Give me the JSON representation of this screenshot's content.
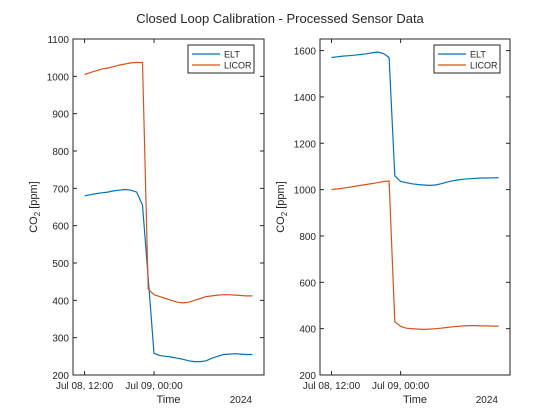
{
  "title": "Closed Loop Calibration - Processed Sensor Data",
  "colors": {
    "elt": "#0072BD",
    "licor": "#D95319"
  },
  "chart_data": [
    {
      "type": "line",
      "xlabel": "Time",
      "x_secondary_label": "2024",
      "ylabel_main": "CO",
      "ylabel_sub": "2",
      "ylabel_unit": " [ppm]",
      "x_ticks": [
        "Jul 08, 12:00",
        "Jul 09, 00:00"
      ],
      "y_ticks": [
        200,
        300,
        400,
        500,
        600,
        700,
        800,
        900,
        1000,
        1100
      ],
      "ylim": [
        200,
        1100
      ],
      "legend_position": "top-right",
      "series": [
        {
          "name": "ELT",
          "color": "#0072BD",
          "x_hours": [
            0,
            1,
            2,
            3,
            4,
            5,
            6,
            7,
            8,
            9,
            10,
            11,
            12,
            13,
            14,
            15,
            16,
            17,
            18,
            19,
            20,
            21,
            22,
            23,
            24,
            25,
            26,
            27,
            28,
            29
          ],
          "values": [
            680,
            683,
            686,
            688,
            690,
            693,
            695,
            697,
            695,
            690,
            655,
            460,
            258,
            252,
            250,
            248,
            245,
            242,
            238,
            236,
            236,
            238,
            245,
            250,
            255,
            256,
            257,
            256,
            255,
            255
          ]
        },
        {
          "name": "LICOR",
          "color": "#D95319",
          "x_hours": [
            0,
            1,
            2,
            3,
            4,
            5,
            6,
            7,
            8,
            9,
            10,
            11,
            12,
            13,
            14,
            15,
            16,
            17,
            18,
            19,
            20,
            21,
            22,
            23,
            24,
            25,
            26,
            27,
            28,
            29
          ],
          "values": [
            1005,
            1010,
            1015,
            1020,
            1022,
            1026,
            1030,
            1033,
            1036,
            1037,
            1037,
            430,
            415,
            410,
            405,
            400,
            395,
            393,
            395,
            400,
            405,
            410,
            412,
            414,
            415,
            415,
            414,
            413,
            412,
            412
          ]
        }
      ]
    },
    {
      "type": "line",
      "xlabel": "Time",
      "x_secondary_label": "2024",
      "ylabel_main": "CO",
      "ylabel_sub": "2",
      "ylabel_unit": " [ppm]",
      "x_ticks": [
        "Jul 08, 12:00",
        "Jul 09, 00:00"
      ],
      "y_ticks": [
        200,
        400,
        600,
        800,
        1000,
        1200,
        1400,
        1600
      ],
      "ylim": [
        200,
        1650
      ],
      "legend_position": "top-right",
      "series": [
        {
          "name": "ELT",
          "color": "#0072BD",
          "x_hours": [
            0,
            1,
            2,
            3,
            4,
            5,
            6,
            7,
            8,
            9,
            10,
            11,
            12,
            13,
            14,
            15,
            16,
            17,
            18,
            19,
            20,
            21,
            22,
            23,
            24,
            25,
            26,
            27,
            28,
            29
          ],
          "values": [
            1570,
            1573,
            1576,
            1578,
            1580,
            1583,
            1586,
            1590,
            1594,
            1588,
            1570,
            1060,
            1035,
            1030,
            1025,
            1022,
            1020,
            1018,
            1020,
            1025,
            1032,
            1038,
            1042,
            1045,
            1047,
            1049,
            1050,
            1050,
            1051,
            1052
          ]
        },
        {
          "name": "LICOR",
          "color": "#D95319",
          "x_hours": [
            0,
            1,
            2,
            3,
            4,
            5,
            6,
            7,
            8,
            9,
            10,
            11,
            12,
            13,
            14,
            15,
            16,
            17,
            18,
            19,
            20,
            21,
            22,
            23,
            24,
            25,
            26,
            27,
            28,
            29
          ],
          "values": [
            1000,
            1003,
            1006,
            1010,
            1014,
            1018,
            1022,
            1026,
            1030,
            1035,
            1037,
            430,
            410,
            402,
            400,
            398,
            397,
            398,
            400,
            402,
            405,
            408,
            410,
            412,
            413,
            413,
            412,
            412,
            411,
            411
          ]
        }
      ]
    }
  ]
}
